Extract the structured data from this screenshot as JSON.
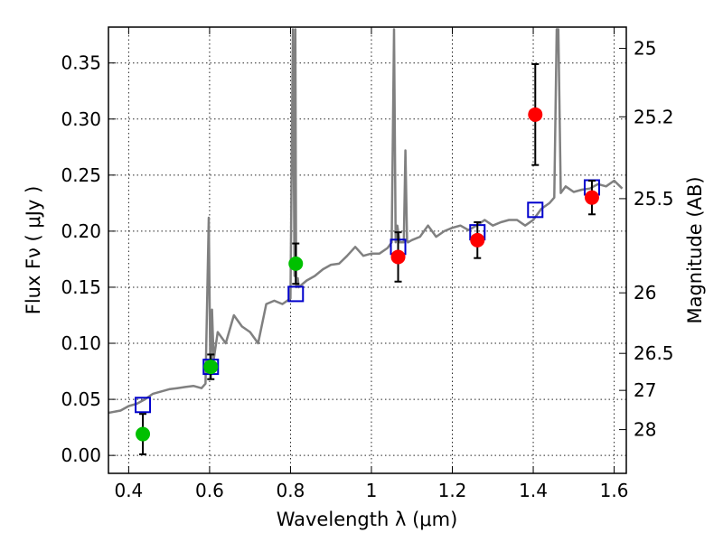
{
  "chart_data": {
    "type": "scatter",
    "xlabel": "Wavelength  λ (μm)",
    "ylabel": "Flux  Fν  ( μJy )",
    "y2label": "Magnitude (AB)",
    "xlim": [
      0.35,
      1.63
    ],
    "ylim": [
      -0.016,
      0.382
    ],
    "grid": true,
    "x_ticks": [
      0.4,
      0.6,
      0.8,
      1.0,
      1.2,
      1.4,
      1.6
    ],
    "x_tick_labels": [
      "0.4",
      "0.6",
      "0.8",
      "1",
      "1.2",
      "1.4",
      "1.6"
    ],
    "y_ticks": [
      0.0,
      0.05,
      0.1,
      0.15,
      0.2,
      0.25,
      0.3,
      0.35
    ],
    "y_tick_labels": [
      "0.00",
      "0.05",
      "0.10",
      "0.15",
      "0.20",
      "0.25",
      "0.30",
      "0.35"
    ],
    "y2_ticks": [
      {
        "label": "25",
        "flux": 0.363
      },
      {
        "label": "25.2",
        "flux": 0.302
      },
      {
        "label": "25.5",
        "flux": 0.229
      },
      {
        "label": "26",
        "flux": 0.145
      },
      {
        "label": "26.5",
        "flux": 0.091
      },
      {
        "label": "27",
        "flux": 0.058
      },
      {
        "label": "28",
        "flux": 0.023
      }
    ],
    "colors": {
      "model": "#808080",
      "model_photometry": "#0000cc",
      "green_points": "#00c000",
      "red_points": "#ff0000",
      "errorbars": "#000000"
    },
    "series": [
      {
        "kind": "line",
        "x": [
          0.35,
          0.38,
          0.4,
          0.42,
          0.44,
          0.46,
          0.48,
          0.5,
          0.52,
          0.54,
          0.56,
          0.58,
          0.59,
          0.598,
          0.602,
          0.606,
          0.61,
          0.62,
          0.64,
          0.66,
          0.68,
          0.7,
          0.72,
          0.74,
          0.76,
          0.78,
          0.8,
          0.806,
          0.81,
          0.812,
          0.814,
          0.818,
          0.82,
          0.84,
          0.86,
          0.88,
          0.9,
          0.92,
          0.94,
          0.96,
          0.98,
          1.0,
          1.02,
          1.04,
          1.05,
          1.056,
          1.06,
          1.064,
          1.07,
          1.08,
          1.084,
          1.088,
          1.09,
          1.1,
          1.12,
          1.14,
          1.16,
          1.18,
          1.2,
          1.22,
          1.24,
          1.26,
          1.28,
          1.3,
          1.32,
          1.34,
          1.36,
          1.38,
          1.4,
          1.42,
          1.44,
          1.452,
          1.458,
          1.462,
          1.468,
          1.48,
          1.5,
          1.52,
          1.54,
          1.56,
          1.58,
          1.6,
          1.62
        ],
        "y": [
          0.038,
          0.04,
          0.044,
          0.046,
          0.05,
          0.055,
          0.057,
          0.059,
          0.06,
          0.061,
          0.062,
          0.06,
          0.064,
          0.212,
          0.07,
          0.13,
          0.085,
          0.11,
          0.1,
          0.125,
          0.115,
          0.11,
          0.1,
          0.135,
          0.138,
          0.135,
          0.14,
          0.38,
          0.16,
          0.38,
          0.15,
          0.158,
          0.15,
          0.156,
          0.16,
          0.166,
          0.17,
          0.171,
          0.178,
          0.186,
          0.178,
          0.18,
          0.18,
          0.185,
          0.19,
          0.38,
          0.19,
          0.205,
          0.19,
          0.19,
          0.272,
          0.192,
          0.19,
          0.192,
          0.195,
          0.205,
          0.195,
          0.2,
          0.203,
          0.205,
          0.201,
          0.205,
          0.21,
          0.205,
          0.208,
          0.21,
          0.21,
          0.205,
          0.21,
          0.22,
          0.225,
          0.23,
          0.38,
          0.38,
          0.234,
          0.24,
          0.235,
          0.237,
          0.238,
          0.242,
          0.24,
          0.245,
          0.238
        ]
      },
      {
        "kind": "squares",
        "x": [
          0.435,
          0.603,
          0.813,
          1.066,
          1.262,
          1.405,
          1.545
        ],
        "y": [
          0.045,
          0.079,
          0.144,
          0.186,
          0.199,
          0.219,
          0.239
        ]
      },
      {
        "kind": "points",
        "color": "green",
        "x": [
          0.435,
          0.603,
          0.813
        ],
        "y": [
          0.019,
          0.079,
          0.171
        ],
        "err": [
          [
            0.018,
            0.018
          ],
          [
            0.011,
            0.011
          ],
          [
            0.018,
            0.018
          ]
        ]
      },
      {
        "kind": "points",
        "color": "red",
        "x": [
          1.066,
          1.262,
          1.405,
          1.545
        ],
        "y": [
          0.177,
          0.192,
          0.304,
          0.23
        ],
        "err": [
          [
            0.022,
            0.022
          ],
          [
            0.016,
            0.016
          ],
          [
            0.045,
            0.045
          ],
          [
            0.015,
            0.015
          ]
        ]
      }
    ]
  }
}
